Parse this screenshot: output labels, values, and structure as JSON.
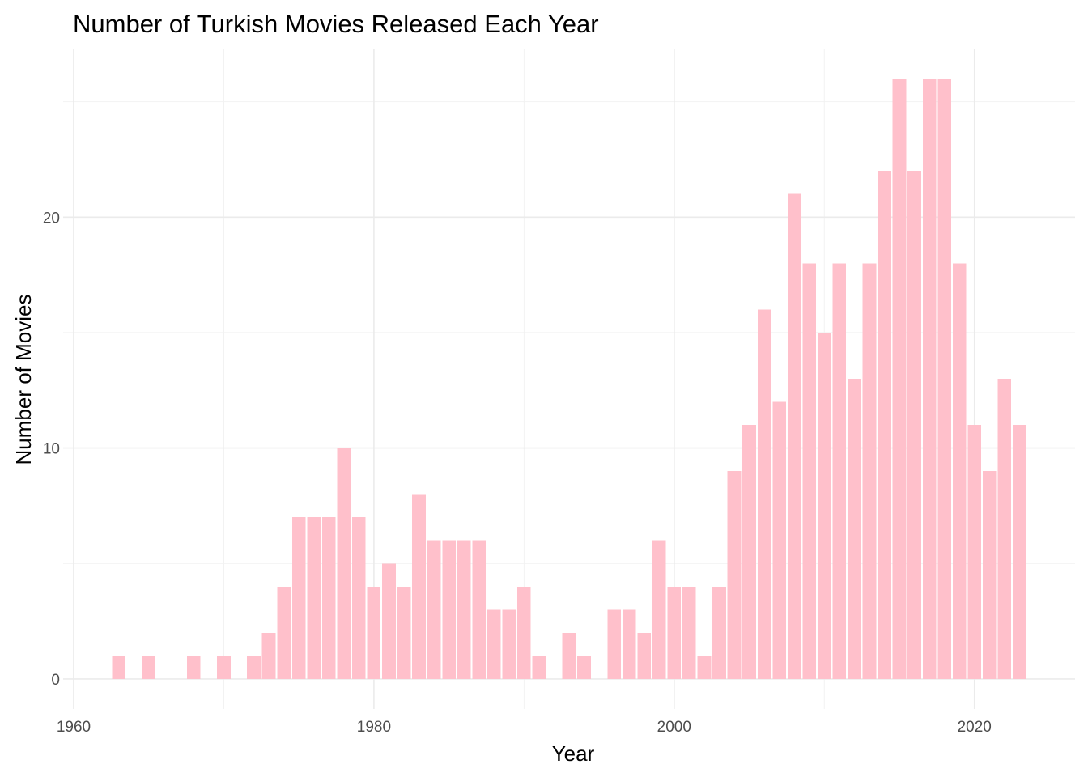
{
  "chart_data": {
    "type": "bar",
    "title": "Number of Turkish Movies Released Each Year",
    "xlabel": "Year",
    "ylabel": "Number of Movies",
    "xlim": [
      1959.3,
      2026.7
    ],
    "ylim": [
      -1.3,
      27.3
    ],
    "xticks": [
      1960,
      1980,
      2000,
      2020
    ],
    "yticks": [
      0,
      10,
      20
    ],
    "grid": true,
    "bar_color": "#ffc0cb",
    "x": [
      1963,
      1965,
      1968,
      1970,
      1972,
      1973,
      1974,
      1975,
      1976,
      1977,
      1978,
      1979,
      1980,
      1981,
      1982,
      1983,
      1984,
      1985,
      1986,
      1987,
      1988,
      1989,
      1990,
      1991,
      1993,
      1994,
      1996,
      1997,
      1998,
      1999,
      2000,
      2001,
      2002,
      2003,
      2004,
      2005,
      2006,
      2007,
      2008,
      2009,
      2010,
      2011,
      2012,
      2013,
      2014,
      2015,
      2016,
      2017,
      2018,
      2019,
      2020,
      2021,
      2022,
      2023
    ],
    "values": [
      1,
      1,
      1,
      1,
      1,
      2,
      4,
      7,
      7,
      7,
      10,
      7,
      4,
      5,
      4,
      8,
      6,
      6,
      6,
      6,
      3,
      3,
      4,
      1,
      2,
      1,
      3,
      3,
      2,
      6,
      4,
      4,
      1,
      4,
      9,
      11,
      16,
      12,
      21,
      18,
      15,
      18,
      13,
      18,
      22,
      26,
      22,
      26,
      26,
      18,
      11,
      9,
      13,
      11
    ]
  }
}
